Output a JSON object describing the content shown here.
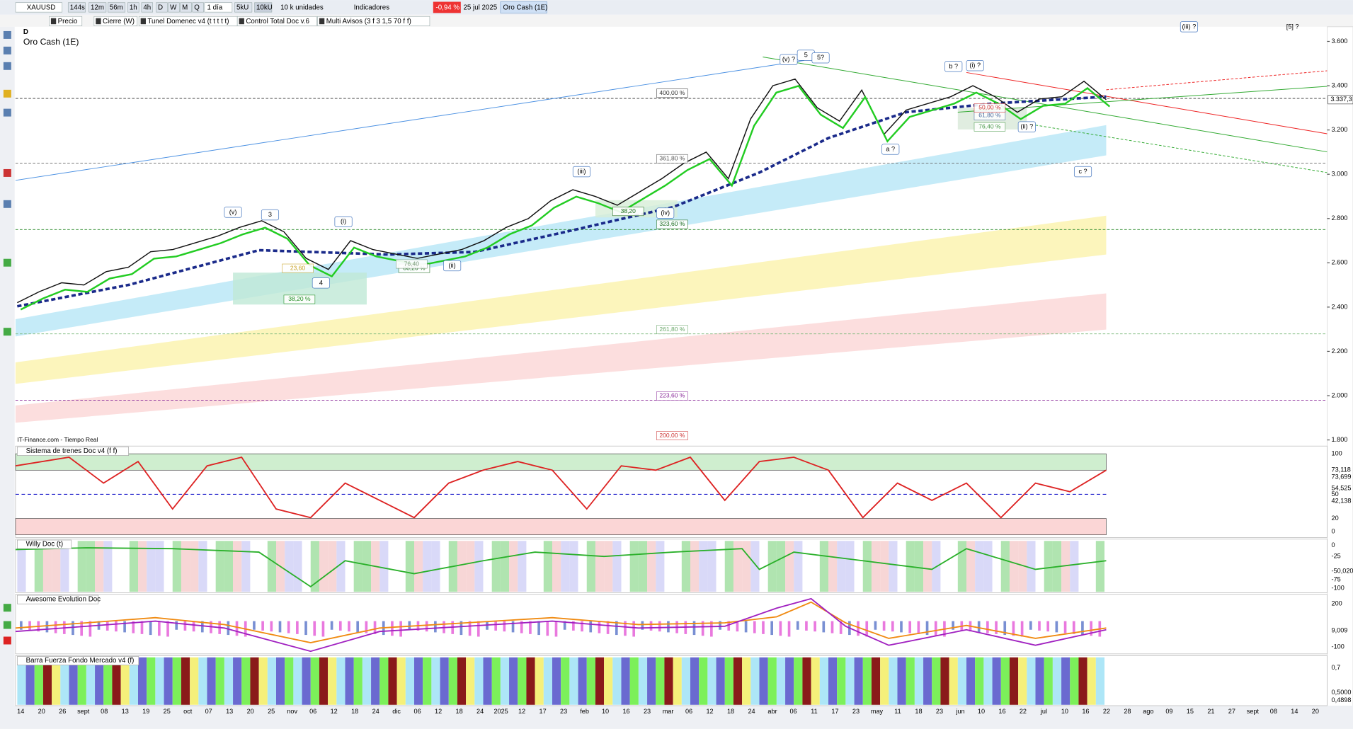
{
  "toolbar": {
    "symbol": "XAUUSD",
    "timeframes": [
      "144s",
      "12m",
      "56m",
      "1h",
      "4h",
      "D",
      "W",
      "M",
      "Q"
    ],
    "period": "1 día",
    "units": [
      "5kU",
      "10kU"
    ],
    "units_label": "10 k unidades",
    "indicators": "Indicadores",
    "change": "-0,94 %",
    "date": "25 jul 2025",
    "instrument": "Oro Cash (1E)"
  },
  "studies": [
    "Precio",
    "Cierre (W)",
    "Tunel Domenec v4 (t t t t t)",
    "Control Total Doc v.6",
    "Multi Avisos (3 f 3 1,5 70 f f)"
  ],
  "chart": {
    "timeframe": "D",
    "title": "Oro Cash (1E)",
    "source": "IT-Finance.com - Tiempo Real",
    "ylim": [
      1792,
      3666
    ],
    "yticks": [
      {
        "value": 3600,
        "label": "3.600"
      },
      {
        "value": 3400,
        "label": "3.400"
      },
      {
        "value": 3200,
        "label": "3.200"
      },
      {
        "value": 3000,
        "label": "3.000"
      },
      {
        "value": 2800,
        "label": "2.800"
      },
      {
        "value": 2600,
        "label": "2.600"
      },
      {
        "value": 2400,
        "label": "2.400"
      },
      {
        "value": 2200,
        "label": "2.200"
      },
      {
        "value": 2000,
        "label": "2.000"
      },
      {
        "value": 1800,
        "label": "1.800"
      }
    ],
    "close": [
      2420,
      2470,
      2510,
      2500,
      2560,
      2580,
      2650,
      2660,
      2690,
      2720,
      2760,
      2790,
      2740,
      2620,
      2570,
      2700,
      2660,
      2640,
      2620,
      2640,
      2660,
      2700,
      2760,
      2800,
      2880,
      2930,
      2900,
      2860,
      2920,
      2980,
      3050,
      3100,
      2980,
      3250,
      3400,
      3430,
      3300,
      3240,
      3380,
      3180,
      3290,
      3320,
      3350,
      3400,
      3350,
      3280,
      3340,
      3350,
      3420,
      3337
    ],
    "last_price": "3.337,3",
    "wave_labels": [
      "(v) ?",
      "5",
      "5?",
      "b ?",
      "(i) ?",
      "(iii) ?",
      "[5] ?",
      "(iii)",
      "(v)",
      "3",
      "(i)",
      "4",
      "(ii)",
      "(iv)",
      "a ?",
      "(ii) ?",
      "c ?"
    ],
    "fib_labels": [
      "400,00 %",
      "361,80 %",
      "323,60 %",
      "261,80 %",
      "223,60 %",
      "38,20 %",
      "88,20 %",
      "23,60",
      "76,40",
      "38,20",
      "61,80 %",
      "76,40 %",
      "50,00 %",
      "200,00 %"
    ]
  },
  "panels": [
    {
      "title": "Sistema de trenes Doc v4 (f f)",
      "ticks": [
        "100",
        "73,118",
        "73,699",
        "54,525",
        "50",
        "42,138",
        "20",
        "0"
      ]
    },
    {
      "title": "Willy Doc (t)",
      "ticks": [
        "0",
        "-25",
        "-50,020",
        "-75",
        "-100"
      ]
    },
    {
      "title": "Awesome Evolution Doc",
      "ticks": [
        "200",
        "9,009",
        "-100"
      ]
    },
    {
      "title": "Barra Fuerza Fondo Mercado v4 (f)",
      "ticks": [
        "0,7",
        "0,5000",
        "0,4898"
      ]
    }
  ],
  "xaxis": [
    "14",
    "20",
    "26",
    "sept",
    "08",
    "13",
    "19",
    "25",
    "oct",
    "07",
    "13",
    "20",
    "25",
    "nov",
    "06",
    "12",
    "18",
    "24",
    "dic",
    "06",
    "12",
    "18",
    "24",
    "2025",
    "12",
    "17",
    "23",
    "feb",
    "10",
    "16",
    "23",
    "mar",
    "06",
    "12",
    "18",
    "24",
    "abr",
    "06",
    "11",
    "17",
    "23",
    "may",
    "11",
    "18",
    "23",
    "jun",
    "10",
    "16",
    "22",
    "jul",
    "10",
    "16",
    "22",
    "28",
    "ago",
    "09",
    "15",
    "21",
    "27",
    "sept",
    "08",
    "14",
    "20"
  ]
}
